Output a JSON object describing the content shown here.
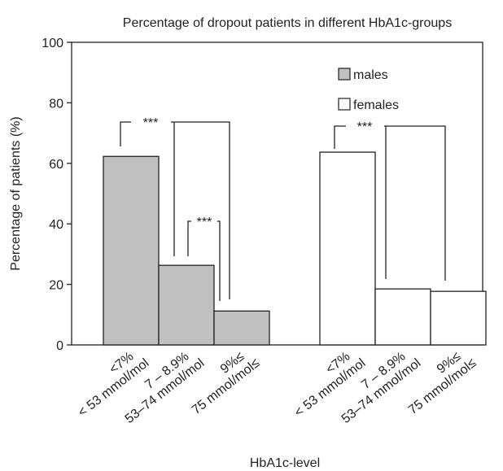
{
  "chart_data": {
    "type": "bar",
    "title": "Percentage of dropout patients in different HbA1c-groups",
    "y_label": "Percentage of patients (%)",
    "x_label": "HbA1c-level",
    "categories": [
      [
        "<7%",
        "< 53 mmol/mol"
      ],
      [
        "7 – 8.9%",
        "53–74 mmol/mol"
      ],
      [
        "9%≤",
        "75 mmol/mol≤"
      ],
      [
        "<7%",
        "< 53 mmol/mol"
      ],
      [
        "7 – 8.9%",
        "53–74 mmol/mol"
      ],
      [
        "9%≤",
        "75 mmol/mol≤"
      ]
    ],
    "series": [
      {
        "name": "males",
        "color": "#c0c0c0",
        "values": [
          62.3,
          26.3,
          11.2,
          null,
          null,
          null
        ]
      },
      {
        "name": "females",
        "color": "#ffffff",
        "values": [
          null,
          null,
          null,
          63.7,
          18.5,
          17.7
        ]
      }
    ],
    "annotations": [
      "***",
      "***",
      "***"
    ],
    "ylim": [
      0,
      100
    ],
    "yticks": [
      0,
      20,
      40,
      60,
      80,
      100
    ],
    "grid": false
  }
}
